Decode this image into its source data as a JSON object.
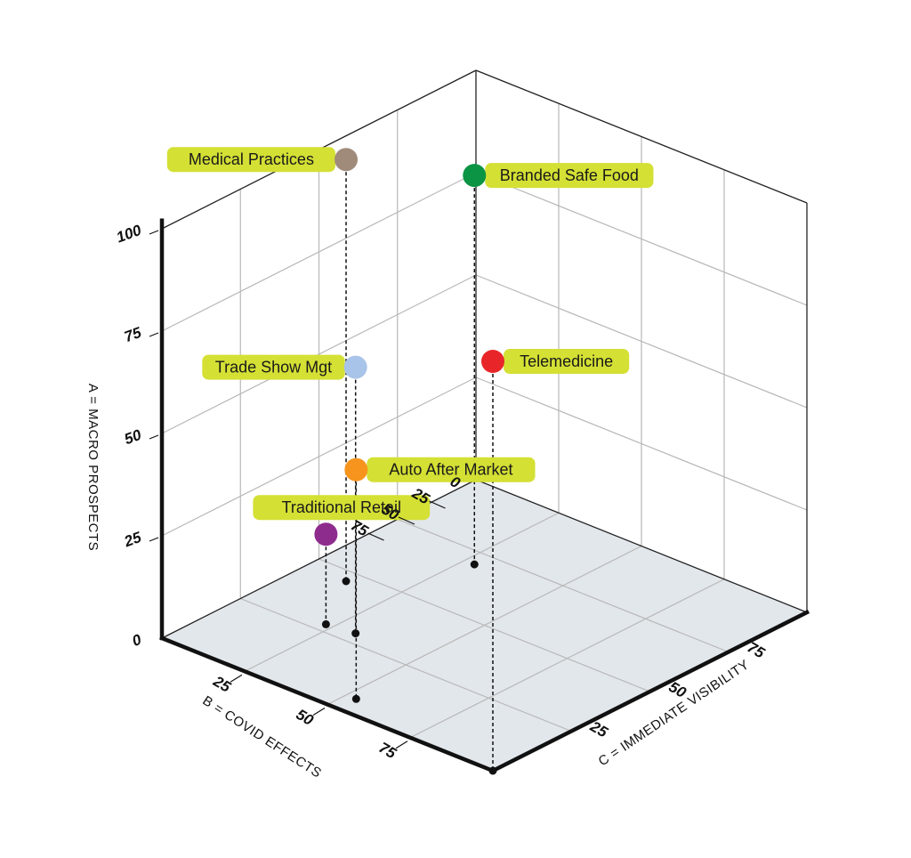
{
  "chart_data": {
    "type": "scatter3d",
    "axes": {
      "a": {
        "label": "A = MACRO PROSPECTS",
        "ticks": [
          "0",
          "25",
          "50",
          "75",
          "100"
        ],
        "range": [
          0,
          100
        ]
      },
      "b": {
        "label": "B = COVID EFFECTS",
        "ticks": [
          "0",
          "25",
          "50",
          "75"
        ],
        "range": [
          0,
          100
        ]
      },
      "c": {
        "label": "C = IMMEDIATE VISIBILITY",
        "ticks": [
          "25",
          "50",
          "75"
        ],
        "range": [
          0,
          100
        ]
      }
    },
    "grid": true,
    "points": [
      {
        "name": "Medical Practices",
        "b": 12,
        "c": 46,
        "a": 103,
        "color": "#a08b7b"
      },
      {
        "name": "Branded Safe Food",
        "b": 28,
        "c": 70,
        "a": 95,
        "color": "#0b9444"
      },
      {
        "name": "Trade Show Mgt",
        "b": 31,
        "c": 29,
        "a": 65,
        "color": "#a8c4e8"
      },
      {
        "name": "Telemedicine",
        "b": 100,
        "c": 0,
        "a": 100,
        "color": "#e8262a"
      },
      {
        "name": "Auto After Market",
        "b": 53,
        "c": 6,
        "a": 56,
        "color": "#f7941d"
      },
      {
        "name": "Traditional Retail",
        "b": 23,
        "c": 28,
        "a": 22,
        "color": "#8e2c8e"
      }
    ],
    "label_color": "#d4e034"
  }
}
